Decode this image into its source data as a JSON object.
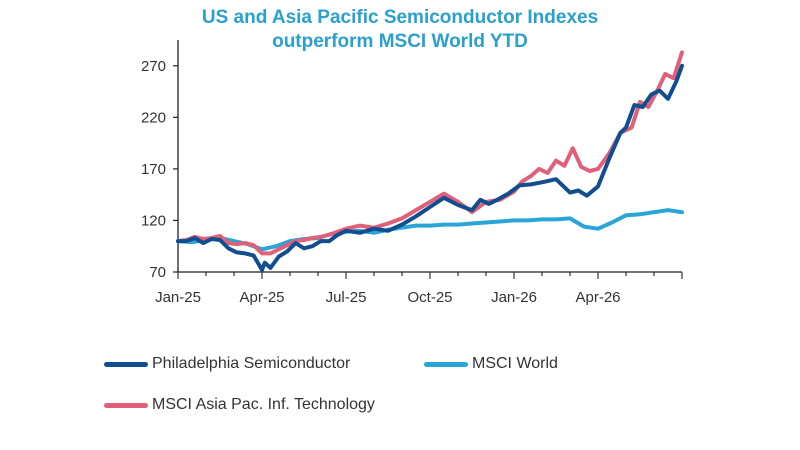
{
  "chart_data": {
    "type": "line",
    "title_line1": "US and Asia Pacific Semiconductor Indexes",
    "title_line2": "outperform MSCI World YTD",
    "xlabel": "",
    "ylabel": "",
    "x_tick_labels": [
      "Jan-25",
      "Apr-25",
      "Jul-25",
      "Oct-25",
      "Jan-26",
      "Apr-26"
    ],
    "y_ticks": [
      70,
      120,
      170,
      220,
      270
    ],
    "ylim": [
      70,
      295
    ],
    "xlim": [
      0,
      18
    ],
    "grid": false,
    "legend_position": "bottom",
    "series": [
      {
        "name": "Philadelphia Semiconductor",
        "color": "#114e8f",
        "x": [
          0,
          0.3,
          0.6,
          0.9,
          1.2,
          1.5,
          1.8,
          2.1,
          2.4,
          2.7,
          3.0,
          3.1,
          3.3,
          3.6,
          3.9,
          4.2,
          4.5,
          4.8,
          5.1,
          5.4,
          5.7,
          6.0,
          6.5,
          7.0,
          7.5,
          8.0,
          8.5,
          9.0,
          9.5,
          10.0,
          10.5,
          10.8,
          11.1,
          11.4,
          11.8,
          12.2,
          12.6,
          13.0,
          13.5,
          14.0,
          14.3,
          14.6,
          15.0,
          15.4,
          15.8,
          16.0,
          16.3,
          16.6,
          16.9,
          17.2,
          17.5,
          17.8,
          18.0
        ],
        "y": [
          100,
          100,
          103,
          98,
          102,
          101,
          93,
          89,
          88,
          86,
          72,
          79,
          74,
          85,
          90,
          98,
          93,
          95,
          100,
          100,
          106,
          110,
          108,
          112,
          110,
          116,
          124,
          133,
          142,
          135,
          130,
          140,
          136,
          140,
          146,
          154,
          155,
          157,
          160,
          147,
          149,
          144,
          153,
          180,
          205,
          210,
          232,
          230,
          242,
          246,
          238,
          255,
          270
        ]
      },
      {
        "name": "MSCI World",
        "color": "#2aa5d8",
        "x": [
          0,
          0.5,
          1.0,
          1.5,
          2.0,
          2.5,
          3.0,
          3.5,
          4.0,
          4.5,
          5.0,
          5.5,
          6.0,
          6.5,
          7.0,
          7.5,
          8.0,
          8.5,
          9.0,
          9.5,
          10.0,
          10.5,
          11.0,
          11.5,
          12.0,
          12.5,
          13.0,
          13.5,
          14.0,
          14.5,
          15.0,
          15.5,
          16.0,
          16.5,
          17.0,
          17.5,
          18.0
        ],
        "y": [
          100,
          99,
          101,
          103,
          100,
          97,
          92,
          95,
          100,
          102,
          103,
          107,
          109,
          110,
          108,
          111,
          113,
          115,
          115,
          116,
          116,
          117,
          118,
          119,
          120,
          120,
          121,
          121,
          122,
          114,
          112,
          118,
          125,
          126,
          128,
          130,
          128
        ]
      },
      {
        "name": "MSCI Asia Pac. Inf. Technology",
        "color": "#e0607a",
        "x": [
          0,
          0.3,
          0.6,
          0.9,
          1.2,
          1.5,
          1.8,
          2.1,
          2.4,
          2.7,
          3.0,
          3.3,
          3.6,
          3.9,
          4.2,
          4.5,
          4.8,
          5.1,
          5.5,
          6.0,
          6.5,
          7.0,
          7.5,
          8.0,
          8.5,
          9.0,
          9.5,
          10.0,
          10.5,
          11.0,
          11.5,
          12.0,
          12.3,
          12.6,
          12.9,
          13.2,
          13.5,
          13.8,
          14.1,
          14.4,
          14.7,
          15.0,
          15.4,
          15.8,
          16.2,
          16.5,
          16.8,
          17.1,
          17.4,
          17.7,
          18.0
        ],
        "y": [
          100,
          101,
          104,
          102,
          103,
          105,
          98,
          97,
          98,
          96,
          88,
          88,
          92,
          96,
          100,
          101,
          103,
          104,
          107,
          112,
          115,
          113,
          117,
          122,
          130,
          138,
          146,
          138,
          128,
          138,
          140,
          148,
          158,
          163,
          170,
          166,
          178,
          173,
          190,
          172,
          168,
          170,
          185,
          205,
          210,
          235,
          230,
          245,
          262,
          258,
          283
        ]
      }
    ]
  }
}
